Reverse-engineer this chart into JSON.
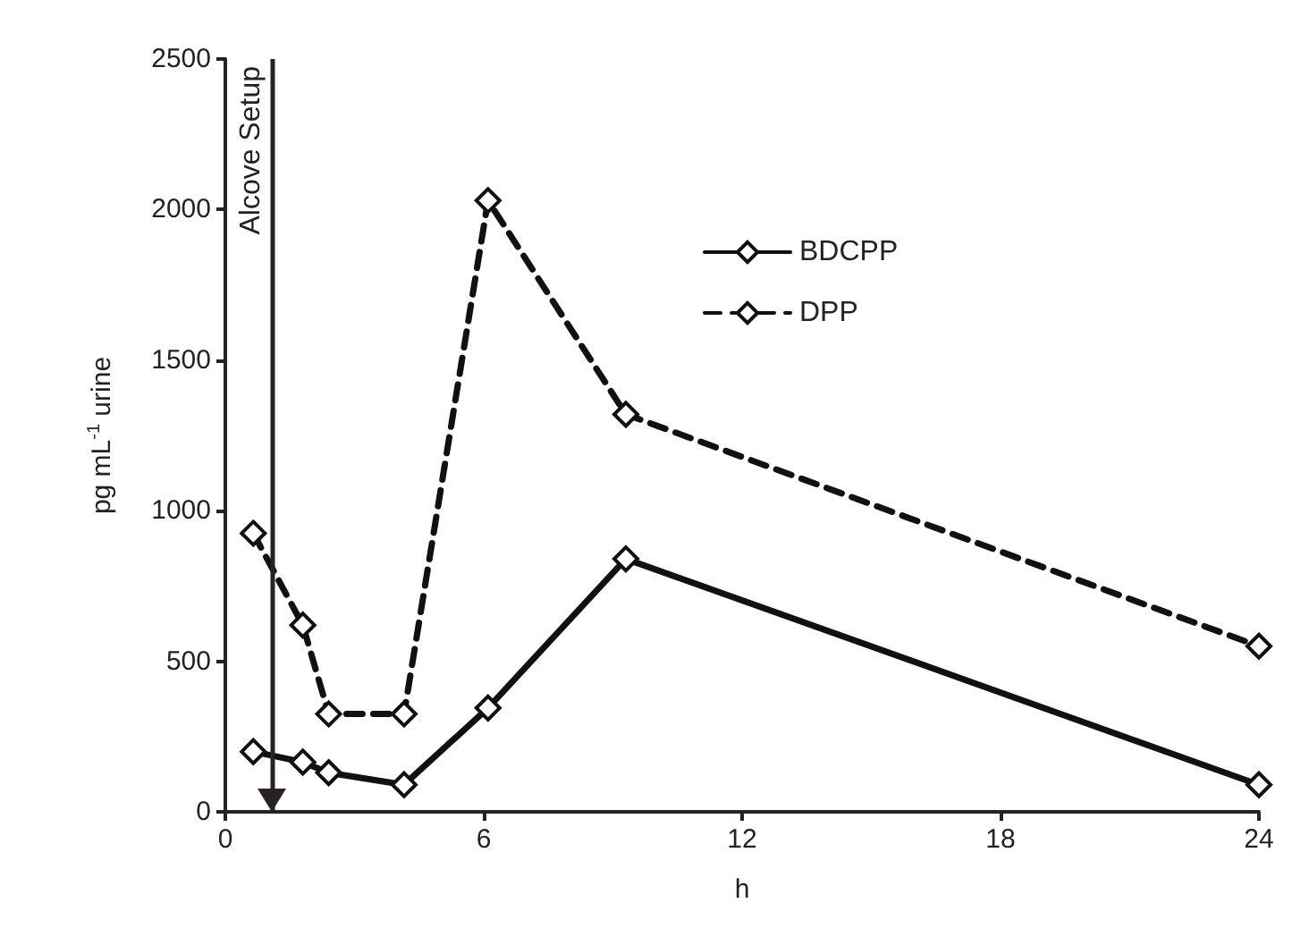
{
  "chart_data": {
    "type": "line",
    "xlabel": "h",
    "ylabel": "pg mL$^{-1}$ urine",
    "xlim": [
      0,
      24
    ],
    "xticks": [
      0,
      6,
      12,
      18,
      24
    ],
    "ylim": [
      0,
      2500
    ],
    "yticks": [
      0,
      500,
      1000,
      1500,
      2000,
      2500
    ],
    "grid": false,
    "legend": "top right",
    "marker": "diamond",
    "series": [
      {
        "name": "BDCPP",
        "color": "#111111",
        "line_style": "solid",
        "x": [
          0.65,
          1.8,
          2.4,
          4.15,
          6.1,
          9.3,
          24
        ],
        "values": [
          200,
          165,
          130,
          90,
          345,
          840,
          90
        ]
      },
      {
        "name": "DPP",
        "color": "#111111",
        "line_style": "dashed",
        "x": [
          0.65,
          1.8,
          2.4,
          4.15,
          6.1,
          9.3,
          24
        ],
        "values": [
          925,
          620,
          325,
          325,
          2030,
          1320,
          550
        ]
      }
    ],
    "ref_lines": [
      {
        "axis": "x",
        "value": 1.1,
        "label": "Alcove Setup",
        "color": "#2a2220"
      }
    ]
  }
}
